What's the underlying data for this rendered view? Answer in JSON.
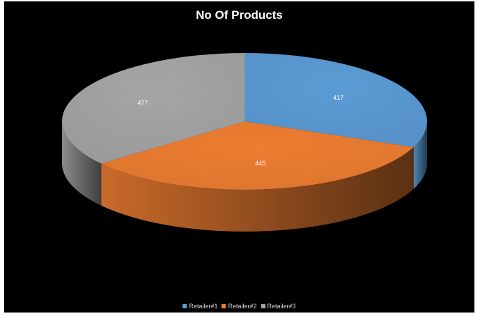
{
  "chart_data": {
    "type": "pie",
    "title": "No Of Products",
    "categories": [
      "Retailer#1",
      "Retailer#2",
      "Retailer#3"
    ],
    "values": [
      417,
      445,
      477
    ],
    "colors": [
      "#5b9bd5",
      "#ed7d31",
      "#a5a5a5"
    ],
    "legend_position": "bottom",
    "three_d": true
  }
}
